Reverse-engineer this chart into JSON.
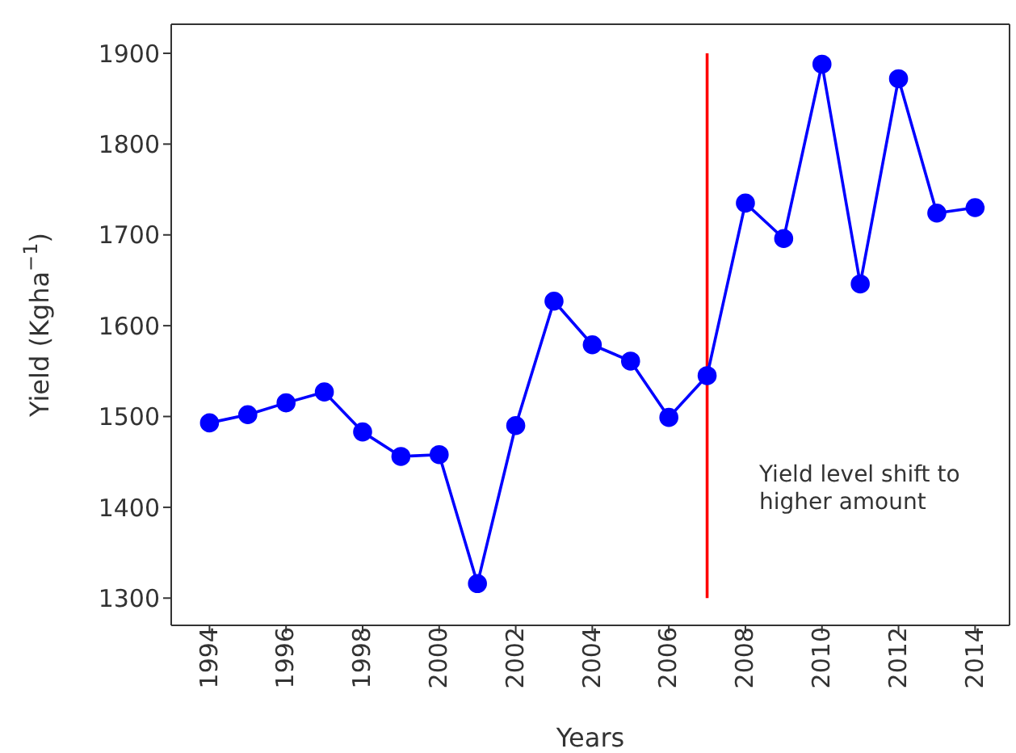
{
  "chart_data": {
    "type": "line",
    "xlabel": "Years",
    "ylabel": "Yield (Kgha$^{−1}$)",
    "x": [
      1994,
      1995,
      1996,
      1997,
      1998,
      1999,
      2000,
      2001,
      2002,
      2003,
      2004,
      2005,
      2006,
      2007,
      2008,
      2009,
      2010,
      2011,
      2012,
      2013,
      2014
    ],
    "series": [
      {
        "color": "#0000ff",
        "values": [
          1493,
          1502,
          1515,
          1527,
          1483,
          1456,
          1458,
          1316,
          1490,
          1627,
          1579,
          1561,
          1499,
          1545,
          1735,
          1696,
          1888,
          1646,
          1872,
          1724,
          1730
        ]
      }
    ],
    "marker": "circle",
    "line_style": "solid",
    "xlim": [
      1993,
      2014.9
    ],
    "xticks": [
      1994,
      1996,
      1998,
      2000,
      2002,
      2004,
      2006,
      2008,
      2010,
      2012,
      2014
    ],
    "ylim": [
      1270,
      1932
    ],
    "yticks": [
      1300,
      1400,
      1500,
      1600,
      1700,
      1800,
      1900
    ],
    "ref_lines": [
      {
        "axis": "x",
        "value": 2007,
        "color": "#ff0000"
      }
    ],
    "annotations": [
      "Yield level shift to higher amount"
    ]
  }
}
